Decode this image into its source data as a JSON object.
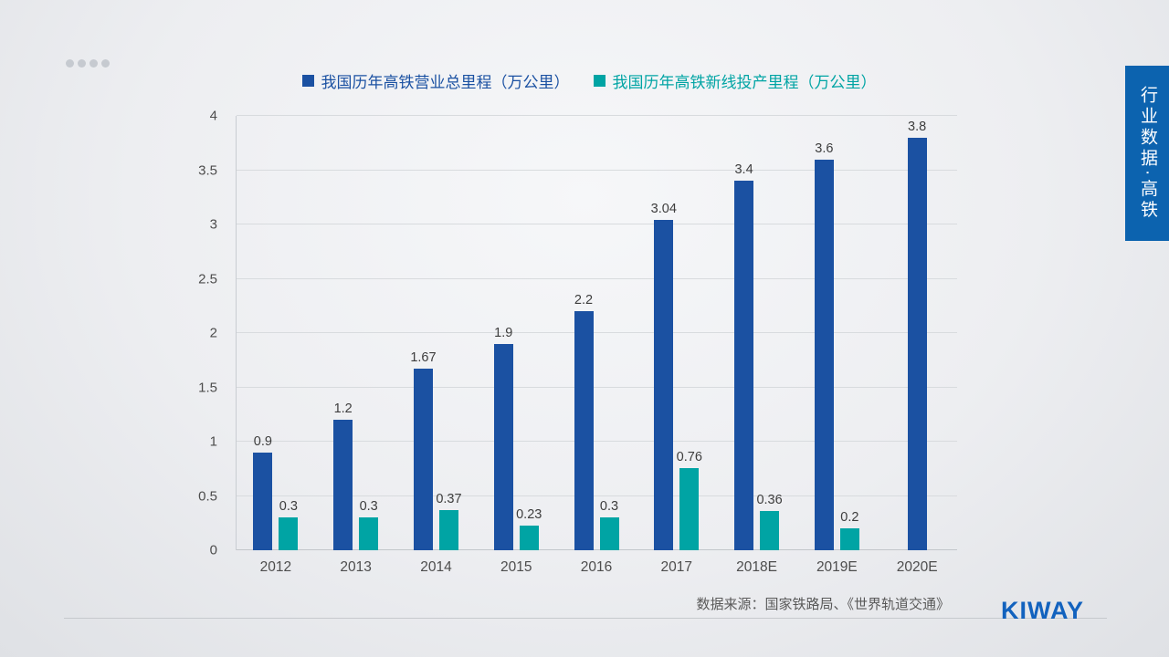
{
  "slide": {
    "source": "数据来源：国家铁路局、《世界轨道交通》",
    "logo": "KIWAY",
    "side_banner": "行业数据·高铁"
  },
  "colors": {
    "primary_blue": "#1b51a2",
    "teal": "#00a4a4",
    "banner_blue": "#0c63af",
    "logo_blue": "#1262be"
  },
  "legend": [
    {
      "label": "我国历年高铁营业总里程（万公里）",
      "color": "#1b51a2"
    },
    {
      "label": "我国历年高铁新线投产里程（万公里）",
      "color": "#00a4a4"
    }
  ],
  "chart_data": {
    "type": "bar",
    "title": "",
    "xlabel": "",
    "ylabel": "",
    "categories": [
      "2012",
      "2013",
      "2014",
      "2015",
      "2016",
      "2017",
      "2018E",
      "2019E",
      "2020E"
    ],
    "series": [
      {
        "name": "我国历年高铁营业总里程（万公里）",
        "color": "#1b51a2",
        "values": [
          0.9,
          1.2,
          1.67,
          1.9,
          2.2,
          3.04,
          3.4,
          3.6,
          3.8
        ]
      },
      {
        "name": "我国历年高铁新线投产里程（万公里）",
        "color": "#00a4a4",
        "values": [
          0.3,
          0.3,
          0.37,
          0.23,
          0.3,
          0.76,
          0.36,
          0.2,
          null
        ]
      }
    ],
    "ylim": [
      0,
      4
    ],
    "yticks": [
      0,
      0.5,
      1,
      1.5,
      2,
      2.5,
      3,
      3.5,
      4
    ],
    "grid": true,
    "legend_position": "top"
  }
}
